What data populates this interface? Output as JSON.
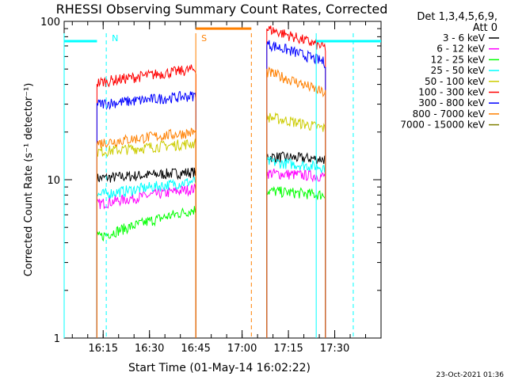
{
  "chart_data": {
    "type": "line",
    "title": "RHESSI Observing Summary Count Rates, Corrected",
    "xlabel": "Start Time (01-May-14 16:02:22)",
    "ylabel": "Corrected Count Rate (s⁻¹ detector⁻¹)",
    "yscale": "log",
    "ylim": [
      1,
      100
    ],
    "xlim": [
      "16:02:22",
      "17:45:00"
    ],
    "x_ticks": [
      "16:15",
      "16:30",
      "16:45",
      "17:00",
      "17:15",
      "17:30"
    ],
    "y_ticks": [
      "1",
      "10",
      "100"
    ],
    "legend": {
      "header": "Det 1,3,4,5,6,9,",
      "subheader": "Att 0",
      "position": "top-right"
    },
    "annotations": [
      {
        "label": "N",
        "time": "16:16",
        "color": "#00ffff"
      },
      {
        "label": "S",
        "time": "16:45",
        "color": "#ff8000"
      }
    ],
    "series": [
      {
        "name": "3 - 6 keV",
        "color": "#000000",
        "values": [
          {
            "start": "16:13",
            "end": "16:45",
            "v0": 10.2,
            "v1": 11.2
          },
          {
            "start": "17:08",
            "end": "17:27",
            "v0": 14.0,
            "v1": 13.5
          }
        ]
      },
      {
        "name": "6 - 12 keV",
        "color": "#ff00ff",
        "values": [
          {
            "start": "16:13",
            "end": "16:45",
            "v0": 7.0,
            "v1": 8.8
          },
          {
            "start": "17:08",
            "end": "17:27",
            "v0": 11.0,
            "v1": 10.5
          }
        ]
      },
      {
        "name": "12 - 25 keV",
        "color": "#00ff00",
        "values": [
          {
            "start": "16:13",
            "end": "16:45",
            "v0": 4.3,
            "v1": 6.5
          },
          {
            "start": "17:08",
            "end": "17:27",
            "v0": 8.5,
            "v1": 8.0
          }
        ]
      },
      {
        "name": "25 - 50 keV",
        "color": "#00ffff",
        "values": [
          {
            "start": "16:13",
            "end": "16:45",
            "v0": 8.0,
            "v1": 9.8
          },
          {
            "start": "17:08",
            "end": "17:27",
            "v0": 13.0,
            "v1": 12.0
          }
        ]
      },
      {
        "name": "50 - 100 keV",
        "color": "#cccc00",
        "values": [
          {
            "start": "16:13",
            "end": "16:45",
            "v0": 15.0,
            "v1": 17.0
          },
          {
            "start": "17:08",
            "end": "17:27",
            "v0": 25.0,
            "v1": 21.0
          }
        ]
      },
      {
        "name": "100 - 300 keV",
        "color": "#ff0000",
        "values": [
          {
            "start": "16:13",
            "end": "16:45",
            "v0": 41.0,
            "v1": 50.0
          },
          {
            "start": "17:08",
            "end": "17:27",
            "v0": 90.0,
            "v1": 68.0
          }
        ]
      },
      {
        "name": "300 - 800 keV",
        "color": "#0000ff",
        "values": [
          {
            "start": "16:13",
            "end": "16:45",
            "v0": 30.0,
            "v1": 34.0
          },
          {
            "start": "17:08",
            "end": "17:27",
            "v0": 72.0,
            "v1": 55.0
          }
        ]
      },
      {
        "name": "800 - 7000 keV",
        "color": "#ff8000",
        "values": [
          {
            "start": "16:13",
            "end": "16:45",
            "v0": 17.0,
            "v1": 20.0
          },
          {
            "start": "17:08",
            "end": "17:27",
            "v0": 48.0,
            "v1": 35.0
          }
        ]
      },
      {
        "name": "7000 - 15000 keV",
        "color": "#808000",
        "values": []
      }
    ]
  },
  "footer": {
    "date": "23-Oct-2021 01:36"
  }
}
